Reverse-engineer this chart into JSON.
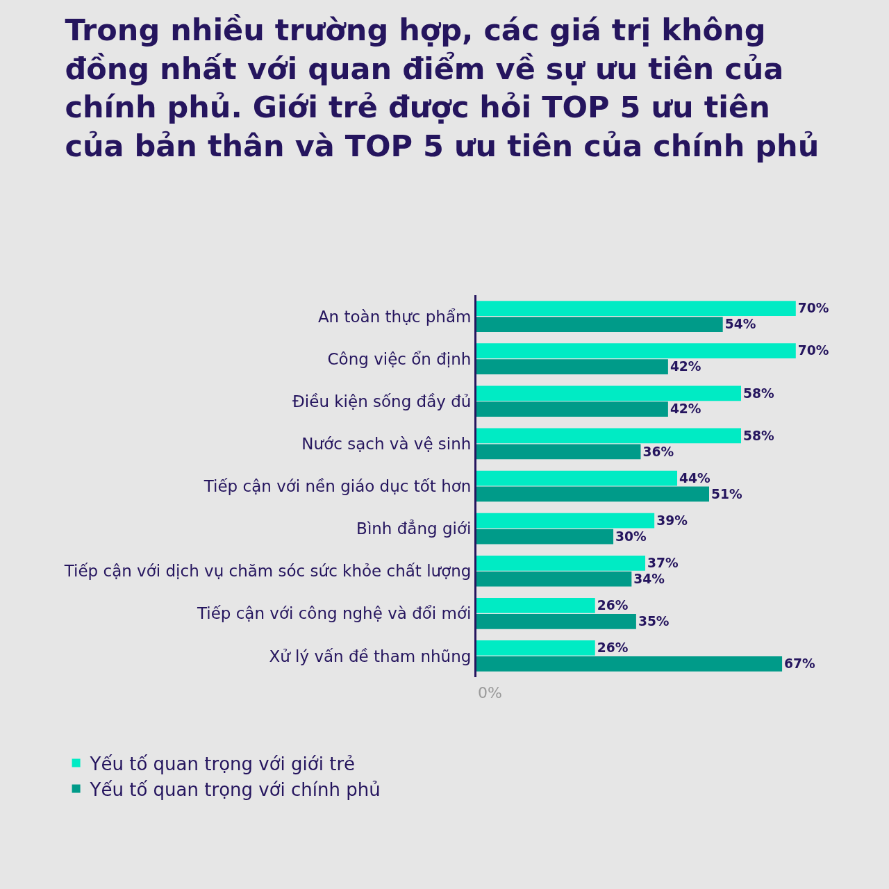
{
  "chart_data": {
    "type": "bar",
    "orientation": "horizontal",
    "title": "Trong nhiều trường hợp, các giá trị không đồng nhất với quan điểm về sự ưu tiên của chính phủ. Giới trẻ được hỏi TOP 5 ưu tiên của bản thân và TOP 5 ưu tiên của chính phủ",
    "categories": [
      "An toàn thực phẩm",
      "Công việc ổn định",
      "Điều kiện sống đầy đủ",
      "Nước sạch và vệ sinh",
      "Tiếp cận với nền giáo dục tốt hơn",
      "Bình đẳng giới",
      "Tiếp cận với dịch vụ chăm sóc sức khỏe chất lượng",
      "Tiếp cận với công nghệ và đổi mới",
      "Xử lý vấn đề tham nhũng"
    ],
    "series": [
      {
        "name": "Yếu tố quan trọng với giới trẻ",
        "color": "#00ebc4",
        "values": [
          70,
          70,
          58,
          58,
          44,
          39,
          37,
          26,
          26
        ],
        "value_labels": [
          "70%",
          "70%",
          "58%",
          "58%",
          "44%",
          "39%",
          "37%",
          "26%",
          "26%"
        ]
      },
      {
        "name": "Yếu tố quan trọng với chính phủ",
        "color": "#009b89",
        "values": [
          54,
          42,
          42,
          36,
          51,
          30,
          34,
          35,
          67
        ],
        "value_labels": [
          "54%",
          "42%",
          "42%",
          "36%",
          "51%",
          "30%",
          "34%",
          "35%",
          "67%"
        ]
      }
    ],
    "annotations": [
      "0%"
    ],
    "legend": "bottom left"
  }
}
